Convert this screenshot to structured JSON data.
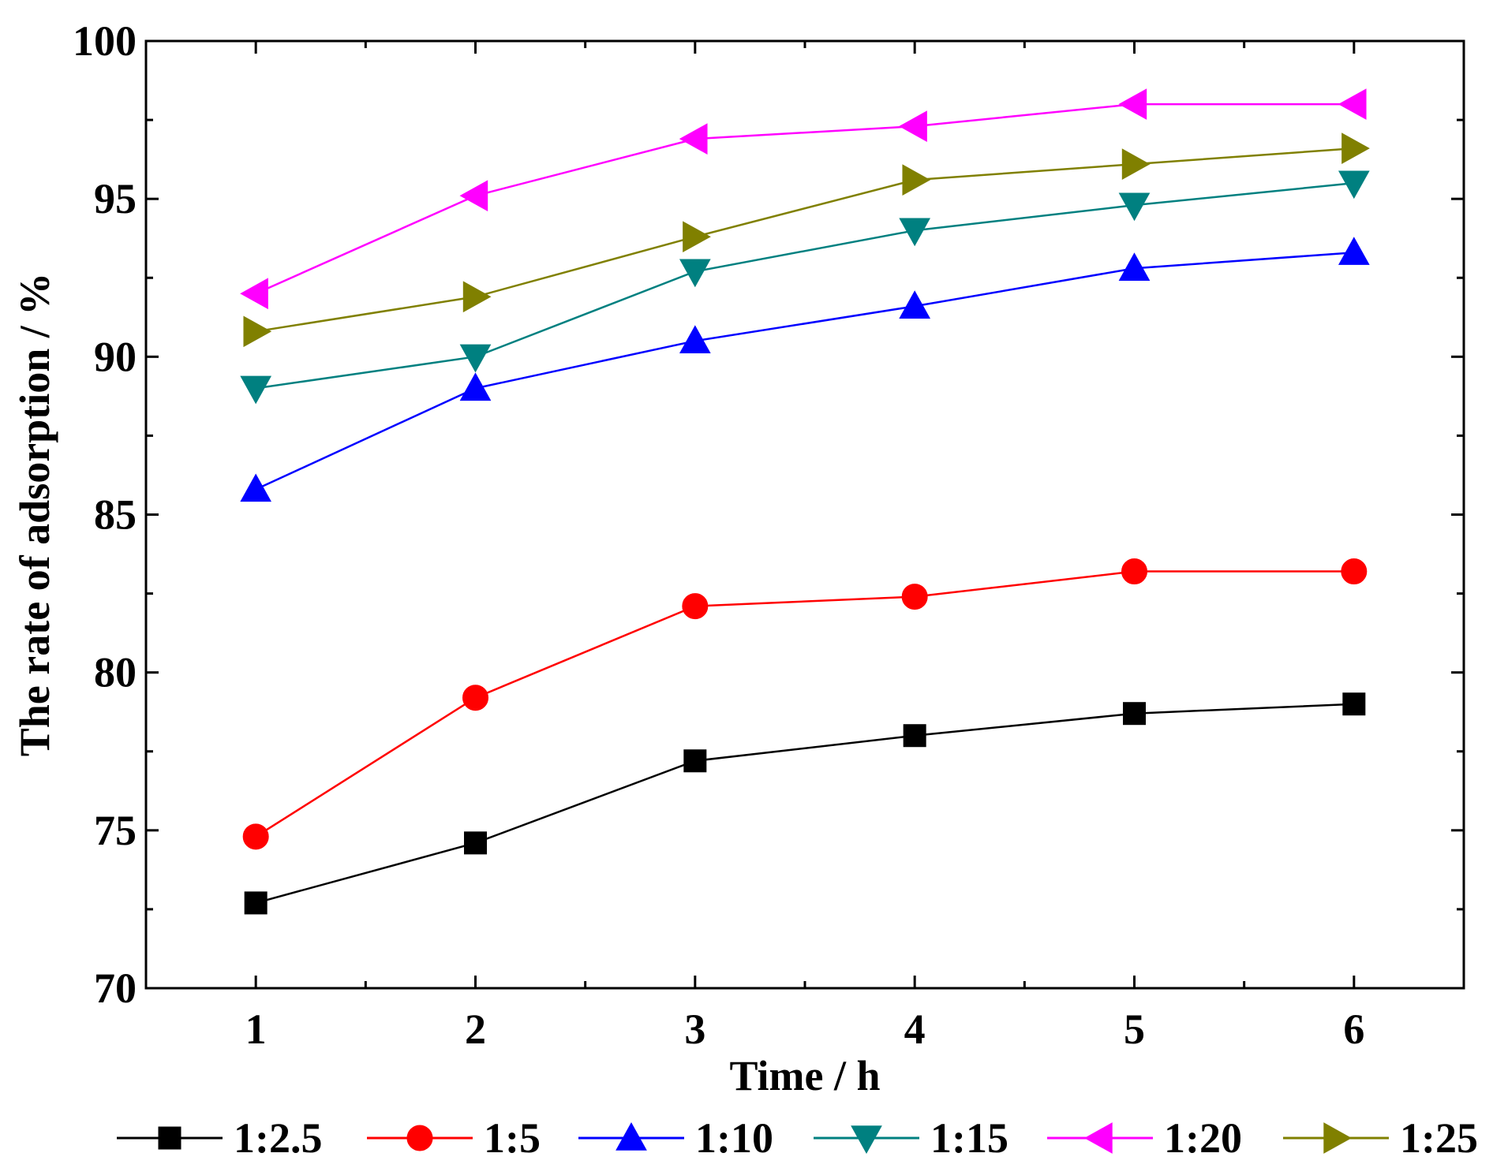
{
  "chart_data": {
    "type": "line",
    "title": "",
    "xlabel": "Time / h",
    "ylabel": "The  rate of adsorption / %",
    "x": [
      1,
      2,
      3,
      4,
      5,
      6
    ],
    "xlim": [
      0.5,
      6.5
    ],
    "ylim": [
      70,
      100
    ],
    "xticks": [
      "1",
      "2",
      "3",
      "4",
      "5",
      "6"
    ],
    "yticks": [
      "70",
      "75",
      "80",
      "85",
      "90",
      "95",
      "100"
    ],
    "grid": false,
    "legend_position": "bottom",
    "series": [
      {
        "name": "1:2.5",
        "marker": "square",
        "color": "#000000",
        "values": [
          72.7,
          74.6,
          77.2,
          78.0,
          78.7,
          79.0
        ]
      },
      {
        "name": "1:5",
        "marker": "circle",
        "color": "#ff0000",
        "values": [
          74.8,
          79.2,
          82.1,
          82.4,
          83.2,
          83.2
        ]
      },
      {
        "name": "1:10",
        "marker": "triangle-up",
        "color": "#0000ff",
        "values": [
          85.8,
          89.0,
          90.5,
          91.6,
          92.8,
          93.3
        ]
      },
      {
        "name": "1:15",
        "marker": "triangle-down",
        "color": "#008080",
        "values": [
          89.0,
          90.0,
          92.7,
          94.0,
          94.8,
          95.5
        ]
      },
      {
        "name": "1:20",
        "marker": "triangle-left",
        "color": "#ff00ff",
        "values": [
          92.0,
          95.1,
          96.9,
          97.3,
          98.0,
          98.0
        ]
      },
      {
        "name": "1:25",
        "marker": "triangle-right",
        "color": "#808000",
        "values": [
          90.8,
          91.9,
          93.8,
          95.6,
          96.1,
          96.6
        ]
      }
    ]
  }
}
